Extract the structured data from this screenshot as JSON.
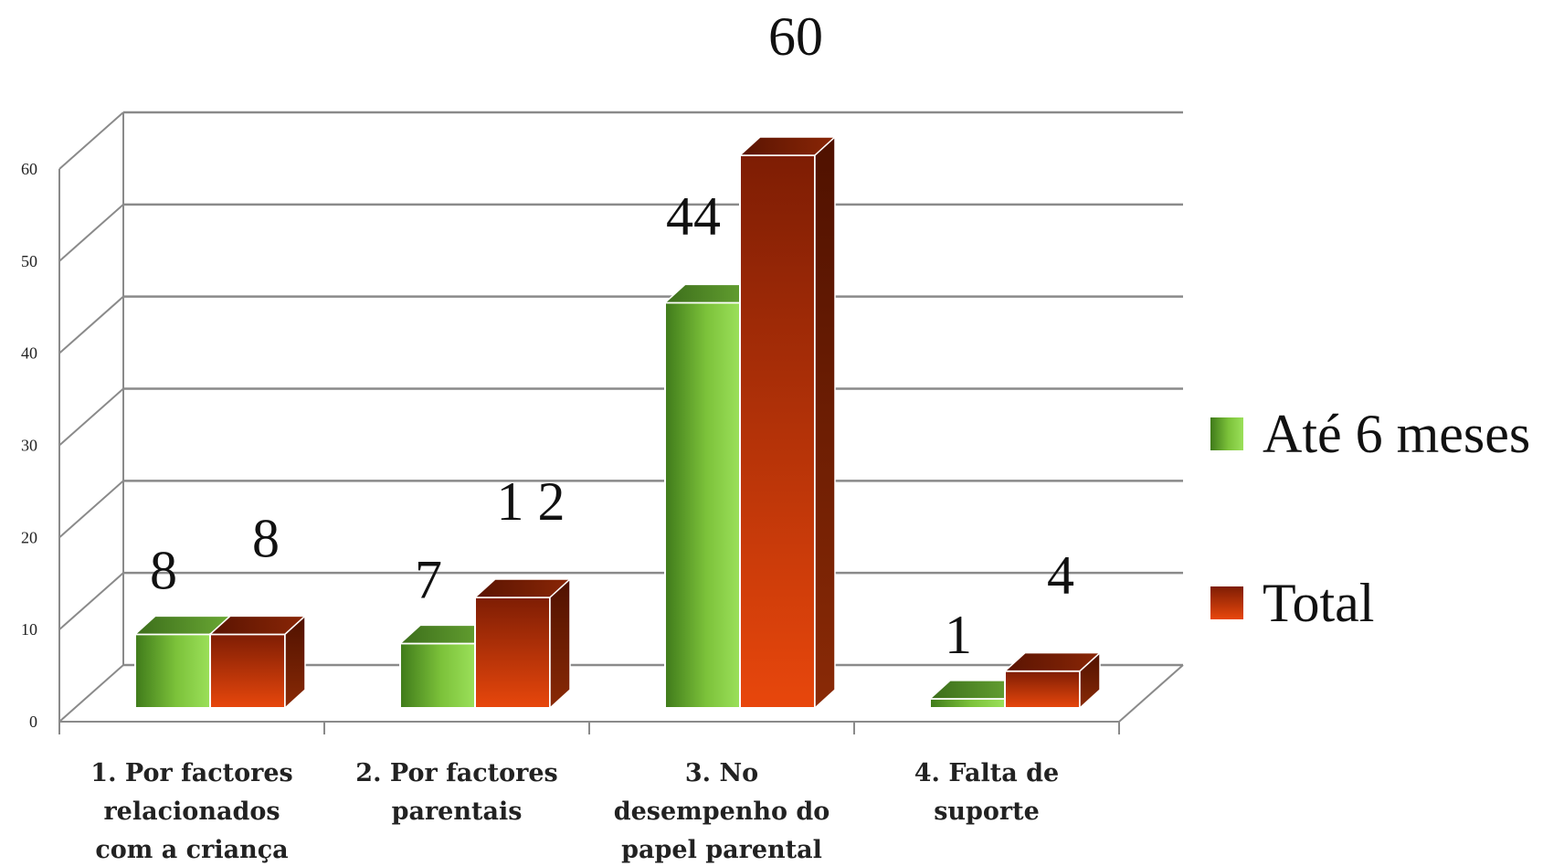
{
  "chart_data": {
    "type": "bar",
    "categories": [
      [
        "1. Por factores",
        "relacionados",
        "com a criança"
      ],
      [
        "2. Por factores",
        "parentais"
      ],
      [
        "3. No",
        "desempenho do",
        "papel parental"
      ],
      [
        "4. Falta de",
        "suporte"
      ]
    ],
    "series": [
      {
        "name": "Até 6 meses",
        "values": [
          8,
          7,
          44,
          1
        ]
      },
      {
        "name": "Total",
        "values": [
          8,
          12,
          60,
          4
        ]
      }
    ],
    "data_labels": [
      [
        "8",
        "7",
        "44",
        "1"
      ],
      [
        "8",
        "1 2",
        "60",
        "4"
      ]
    ],
    "yticks": [
      0,
      10,
      20,
      30,
      40,
      50,
      60
    ],
    "ylim": [
      0,
      60
    ],
    "grid": true,
    "legend_position": "right",
    "colors": {
      "series0": "#7cc23a",
      "series1": "#c63a0c",
      "grid": "#8a8a8a"
    }
  }
}
